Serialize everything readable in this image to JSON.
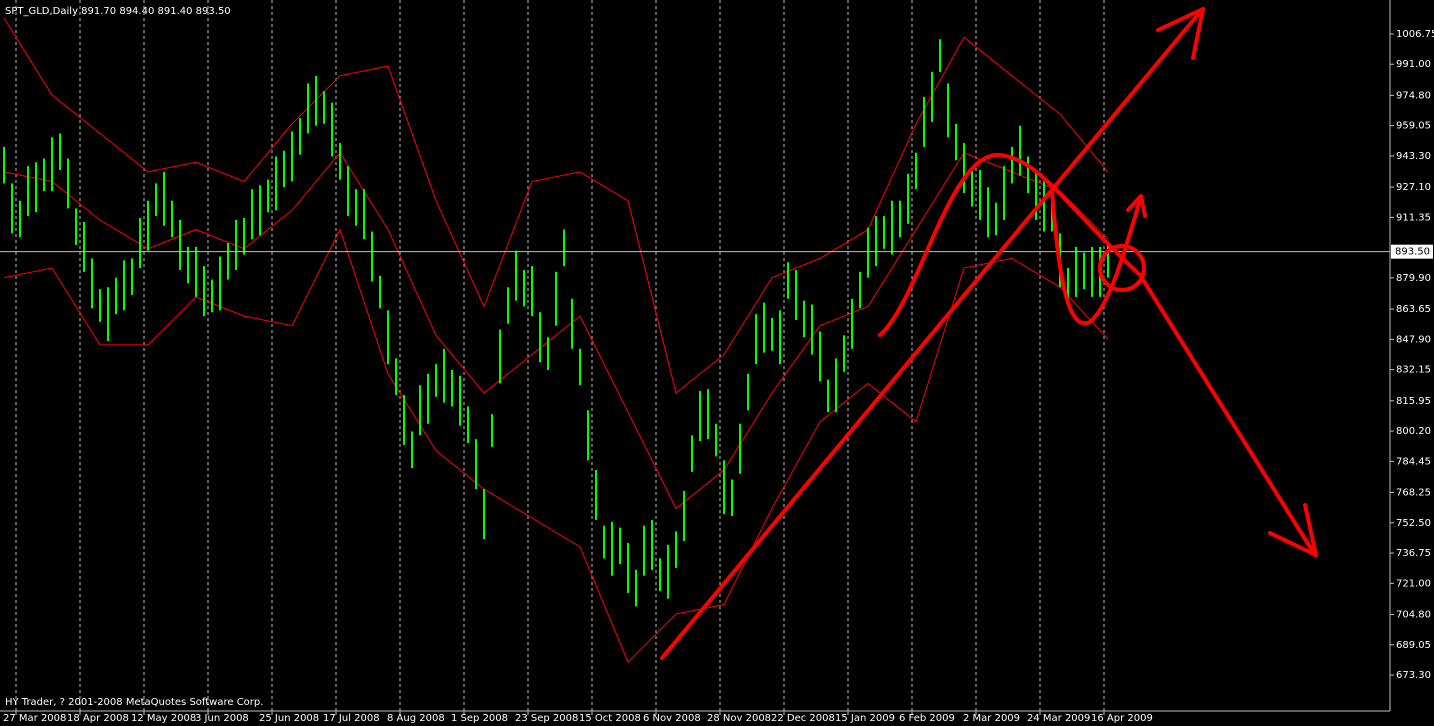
{
  "chart_data": {
    "type": "ohlc",
    "title": "SPT_GLD,Daily  891.70 894.40 891.40 893.50",
    "footer": "HY Trader, ? 2001-2008 MetaQuotes Software Corp.",
    "color": "#00ff00",
    "x": [
      0,
      1,
      2,
      3,
      4,
      5,
      6,
      7,
      8,
      9,
      10,
      11,
      12,
      13,
      14,
      15,
      16,
      17,
      18,
      19,
      20,
      21,
      22,
      23,
      24,
      25,
      26,
      27,
      28,
      29,
      30,
      31,
      32,
      33,
      34,
      35,
      36,
      37,
      38,
      39,
      40,
      41,
      42,
      43,
      44,
      45,
      46,
      47,
      48,
      49,
      50,
      51,
      52,
      53,
      54,
      55,
      56,
      57,
      58,
      59,
      60,
      61,
      62,
      63,
      64,
      65,
      66,
      67,
      68,
      69,
      70,
      71,
      72,
      73,
      74,
      75,
      76,
      77,
      78,
      79,
      80,
      81,
      82,
      83,
      84,
      85,
      86,
      87,
      88,
      89,
      90,
      91,
      92,
      93,
      94,
      95,
      96,
      97,
      98,
      99,
      100,
      101,
      102,
      103,
      104,
      105,
      106,
      107,
      108,
      109,
      110,
      111,
      112,
      113,
      114,
      115,
      116,
      117,
      118,
      119,
      120,
      121,
      122,
      123,
      124,
      125,
      126,
      127,
      128,
      129,
      130,
      131,
      132,
      133,
      134,
      135,
      136,
      137,
      138
    ],
    "high": [
      948,
      929,
      920,
      938,
      940,
      942,
      953,
      955,
      942,
      916,
      909,
      890,
      874,
      875,
      880,
      889,
      890,
      911,
      920,
      929,
      935,
      920,
      910,
      896,
      896,
      886,
      879,
      891,
      898,
      910,
      911,
      926,
      928,
      931,
      943,
      946,
      956,
      963,
      981,
      985,
      977,
      971,
      950,
      938,
      926,
      926,
      904,
      881,
      863,
      838,
      819,
      800,
      824,
      830,
      835,
      843,
      832,
      829,
      813,
      796,
      770,
      809,
      853,
      875,
      894,
      884,
      886,
      862,
      849,
      883,
      905,
      869,
      843,
      811,
      780,
      751,
      753,
      750,
      742,
      728,
      751,
      754,
      734,
      741,
      748,
      769,
      798,
      821,
      822,
      804,
      785,
      775,
      804,
      830,
      861,
      867,
      859,
      863,
      888,
      884,
      868,
      866,
      852,
      827,
      838,
      850,
      869,
      883,
      906,
      912,
      912,
      920,
      920,
      934,
      945,
      974,
      987,
      1004,
      981,
      960,
      950,
      936,
      936,
      927,
      919,
      938,
      948,
      959,
      943,
      936,
      930,
      921,
      903,
      885,
      896,
      893,
      896,
      896,
      898
    ],
    "low": [
      929,
      903,
      901,
      912,
      914,
      925,
      925,
      936,
      916,
      897,
      883,
      864,
      857,
      847,
      861,
      863,
      871,
      885,
      894,
      912,
      907,
      901,
      884,
      877,
      870,
      860,
      862,
      863,
      879,
      884,
      892,
      900,
      902,
      914,
      915,
      927,
      930,
      944,
      955,
      959,
      960,
      943,
      931,
      912,
      907,
      900,
      878,
      864,
      835,
      819,
      793,
      781,
      798,
      804,
      818,
      815,
      813,
      803,
      794,
      770,
      744,
      792,
      825,
      856,
      868,
      865,
      860,
      836,
      832,
      855,
      886,
      843,
      824,
      785,
      754,
      734,
      725,
      731,
      716,
      709,
      725,
      728,
      717,
      713,
      729,
      743,
      779,
      795,
      796,
      787,
      757,
      756,
      778,
      811,
      835,
      841,
      842,
      835,
      869,
      858,
      849,
      840,
      826,
      810,
      810,
      831,
      843,
      864,
      880,
      886,
      895,
      892,
      901,
      908,
      926,
      948,
      961,
      987,
      953,
      941,
      924,
      917,
      910,
      901,
      902,
      910,
      929,
      933,
      924,
      910,
      904,
      904,
      875,
      866,
      870,
      874,
      870,
      870,
      880
    ],
    "band_x": [
      0,
      6,
      12,
      18,
      24,
      30,
      36,
      42,
      48,
      54,
      60,
      66,
      72,
      78,
      84,
      90,
      96,
      102,
      108,
      114,
      120,
      126,
      132,
      138
    ],
    "bands": [
      {
        "color": "#ff0000",
        "values": [
          1015,
          975,
          955,
          935,
          940,
          930,
          960,
          985,
          990,
          920,
          865,
          930,
          935,
          920,
          820,
          840,
          880,
          890,
          905,
          960,
          1005,
          985,
          965,
          935
        ]
      },
      {
        "color": "#ff0000",
        "values": [
          935,
          930,
          910,
          895,
          905,
          895,
          915,
          945,
          905,
          850,
          820,
          840,
          860,
          810,
          760,
          780,
          820,
          855,
          865,
          905,
          945,
          935,
          925,
          900
        ]
      },
      {
        "color": "#ff0000",
        "values": [
          880,
          885,
          845,
          845,
          870,
          860,
          855,
          905,
          830,
          790,
          770,
          755,
          740,
          680,
          705,
          710,
          760,
          805,
          825,
          805,
          885,
          890,
          875,
          848
        ]
      }
    ],
    "last_price": {
      "value": 893.5,
      "label": "893.50"
    },
    "xlim": [
      -0.5,
      173.25
    ],
    "ylim": [
      654.6,
      1024.4
    ],
    "xticks": [
      {
        "value": 1.5,
        "label": "27 Mar 2008"
      },
      {
        "value": 9.5,
        "label": "18 Apr 2008"
      },
      {
        "value": 17.5,
        "label": "12 May 2008"
      },
      {
        "value": 25.5,
        "label": "3 Jun 2008"
      },
      {
        "value": 33.5,
        "label": "25 Jun 2008"
      },
      {
        "value": 41.5,
        "label": "17 Jul 2008"
      },
      {
        "value": 49.5,
        "label": "8 Aug 2008"
      },
      {
        "value": 57.5,
        "label": "1 Sep 2008"
      },
      {
        "value": 65.5,
        "label": "23 Sep 2008"
      },
      {
        "value": 73.5,
        "label": "15 Oct 2008"
      },
      {
        "value": 81.5,
        "label": "6 Nov 2008"
      },
      {
        "value": 89.5,
        "label": "28 Nov 2008"
      },
      {
        "value": 97.5,
        "label": "22 Dec 2008"
      },
      {
        "value": 105.5,
        "label": "15 Jan 2009"
      },
      {
        "value": 113.5,
        "label": "6 Feb 2009"
      },
      {
        "value": 121.5,
        "label": "2 Mar 2009"
      },
      {
        "value": 129.5,
        "label": "24 Mar 2009"
      },
      {
        "value": 137.5,
        "label": "16 Apr 2009"
      }
    ],
    "yticks": [
      {
        "value": 1006.75,
        "label": "1006.75"
      },
      {
        "value": 991,
        "label": "991.00"
      },
      {
        "value": 974.8,
        "label": "974.80"
      },
      {
        "value": 959.05,
        "label": "959.05"
      },
      {
        "value": 943.3,
        "label": "943.30"
      },
      {
        "value": 927.1,
        "label": "927.10"
      },
      {
        "value": 911.35,
        "label": "911.35"
      },
      {
        "value": 879.9,
        "label": "879.90"
      },
      {
        "value": 863.65,
        "label": "863.65"
      },
      {
        "value": 847.9,
        "label": "847.90"
      },
      {
        "value": 832.15,
        "label": "832.15"
      },
      {
        "value": 815.95,
        "label": "815.95"
      },
      {
        "value": 800.2,
        "label": "800.20"
      },
      {
        "value": 784.45,
        "label": "784.45"
      },
      {
        "value": 768.25,
        "label": "768.25"
      },
      {
        "value": 752.5,
        "label": "752.50"
      },
      {
        "value": 736.75,
        "label": "736.75"
      },
      {
        "value": 721,
        "label": "721.00"
      },
      {
        "value": 704.8,
        "label": "704.80"
      },
      {
        "value": 689.05,
        "label": "689.05"
      },
      {
        "value": 673.3,
        "label": "673.30"
      }
    ]
  }
}
